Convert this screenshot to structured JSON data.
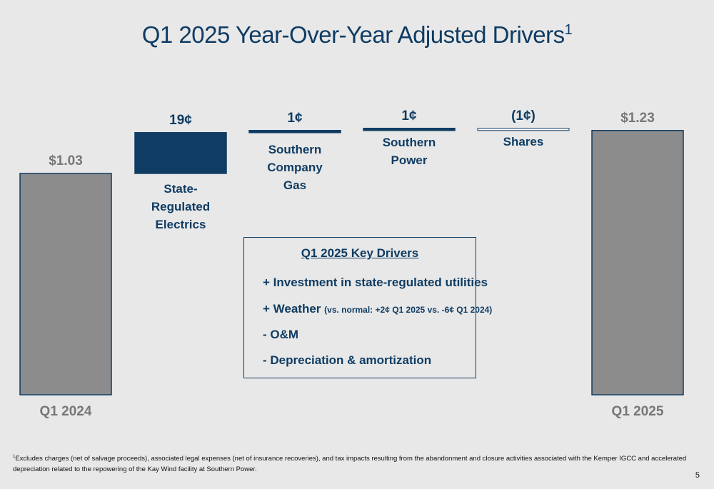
{
  "title": "Q1 2025 Year-Over-Year Adjusted Drivers",
  "title_superscript": "1",
  "chart_data": {
    "type": "bar",
    "subtype": "waterfall",
    "unit": "$ per share",
    "categories": [
      "Q1 2024",
      "State-Regulated Electrics",
      "Southern Company Gas",
      "Southern Power",
      "Shares",
      "Q1 2025"
    ],
    "values": [
      1.03,
      0.19,
      0.01,
      0.01,
      -0.01,
      1.23
    ],
    "value_labels": [
      "$1.03",
      "19¢",
      "1¢",
      "1¢",
      "(1¢)",
      "$1.23"
    ],
    "category_labels": [
      [
        "Q1 2024"
      ],
      [
        "State-",
        "Regulated",
        "Electrics"
      ],
      [
        "Southern",
        "Company",
        "Gas"
      ],
      [
        "Southern",
        "Power"
      ],
      [
        "Shares"
      ],
      [
        "Q1 2025"
      ]
    ],
    "colors": {
      "total": "#8c8c8c",
      "increase": "#0f3c63",
      "decrease": "#ffffff",
      "outline": "#0f3c63",
      "total_label": "#777777",
      "driver_label": "#0f3c63"
    }
  },
  "key_drivers": {
    "title": "Q1 2025 Key Drivers",
    "items": [
      {
        "text": "+ Investment in state-regulated utilities",
        "note": ""
      },
      {
        "text": "+ Weather",
        "note": "(vs. normal: +2¢ Q1 2025 vs. -6¢ Q1 2024)"
      },
      {
        "text": "- O&M",
        "note": ""
      },
      {
        "text": "- Depreciation & amortization",
        "note": ""
      }
    ]
  },
  "footnote": {
    "marker": "1",
    "text": "Excludes charges (net of salvage proceeds), associated legal expenses (net of insurance recoveries), and tax impacts resulting from the abandonment and closure activities associated with the Kemper IGCC and accelerated depreciation related to the repowering of the Kay Wind facility at Southern Power."
  },
  "page_number": "5"
}
